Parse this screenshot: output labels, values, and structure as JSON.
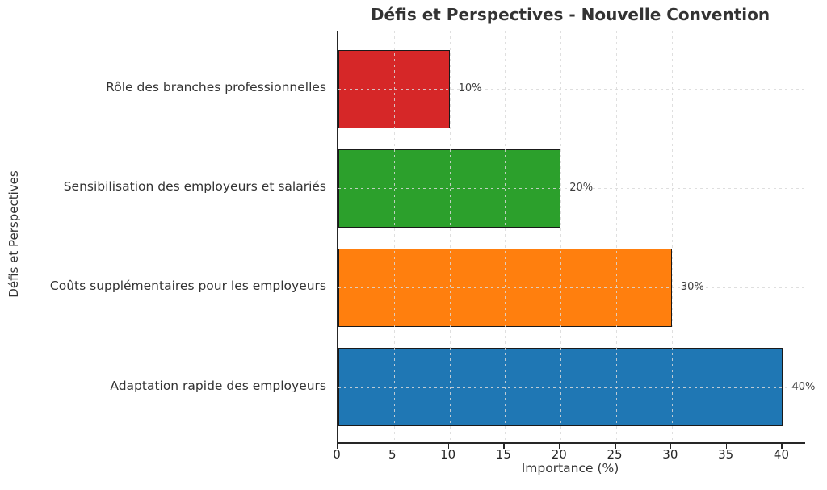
{
  "chart_data": {
    "type": "bar",
    "orientation": "horizontal",
    "title": "Défis et Perspectives - Nouvelle Convention",
    "xlabel": "Importance (%)",
    "ylabel": "Défis et Perspectives",
    "categories": [
      "Rôle des branches professionnelles",
      "Sensibilisation des employeurs et salariés",
      "Coûts supplémentaires pour les employeurs",
      "Adaptation rapide des employeurs"
    ],
    "values": [
      10,
      20,
      30,
      40
    ],
    "value_labels": [
      "10%",
      "20%",
      "30%",
      "40%"
    ],
    "bar_colors": [
      "#d62728",
      "#2ca02c",
      "#ff7f0e",
      "#1f77b4"
    ],
    "bar_edge_color": "#1a1a1a",
    "x_ticks": [
      0,
      5,
      10,
      15,
      20,
      25,
      30,
      35,
      40
    ],
    "x_tick_labels": [
      "0",
      "5",
      "10",
      "15",
      "20",
      "25",
      "30",
      "35",
      "40"
    ],
    "xlim": [
      0,
      42
    ],
    "grid": true,
    "grid_style": "dashed",
    "legend": "none",
    "axis_color": "#262626",
    "text_color": "#333333",
    "background_color": "#ffffff"
  }
}
